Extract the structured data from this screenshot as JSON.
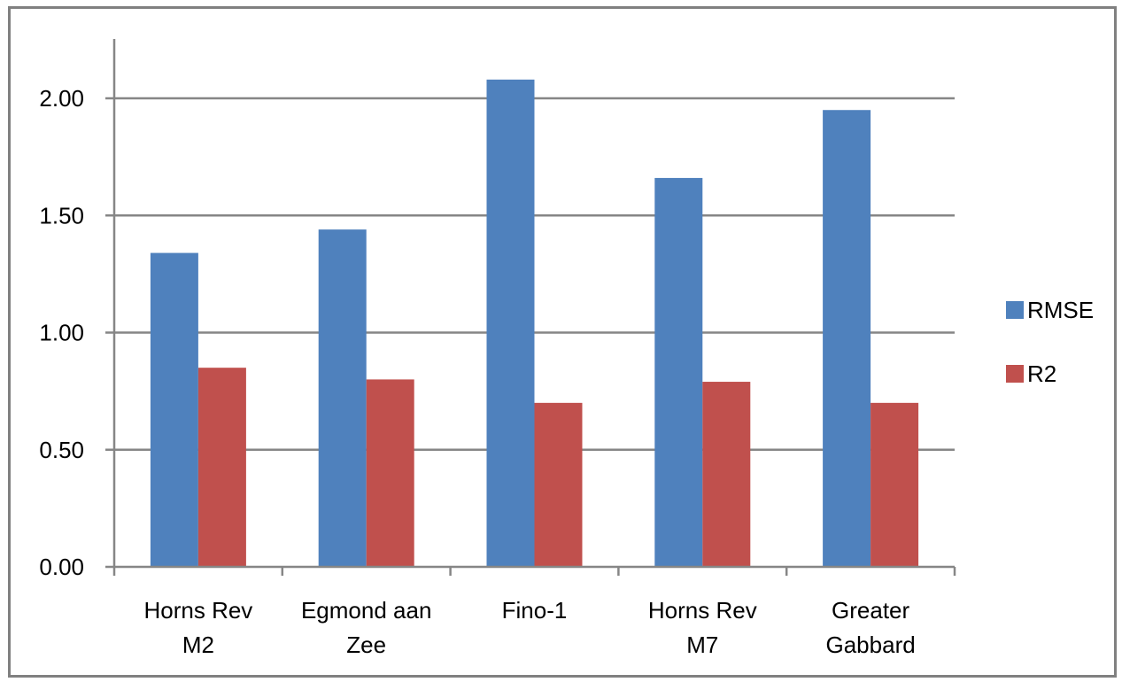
{
  "chart_data": {
    "type": "bar",
    "categories": [
      [
        "Horns Rev",
        "M2"
      ],
      [
        "Egmond aan",
        "Zee"
      ],
      [
        "Fino-1"
      ],
      [
        "Horns Rev",
        "M7"
      ],
      [
        "Greater",
        "Gabbard"
      ]
    ],
    "series": [
      {
        "name": "RMSE",
        "color": "#4F81BD",
        "values": [
          1.34,
          1.44,
          2.08,
          1.66,
          1.95
        ]
      },
      {
        "name": "R2",
        "color": "#C0504D",
        "values": [
          0.85,
          0.8,
          0.7,
          0.79,
          0.7
        ]
      }
    ],
    "yticks": [
      "0.00",
      "0.50",
      "1.00",
      "1.50",
      "2.00"
    ],
    "ylim": [
      0,
      2.2
    ],
    "grid": true,
    "legend_position": "right"
  }
}
